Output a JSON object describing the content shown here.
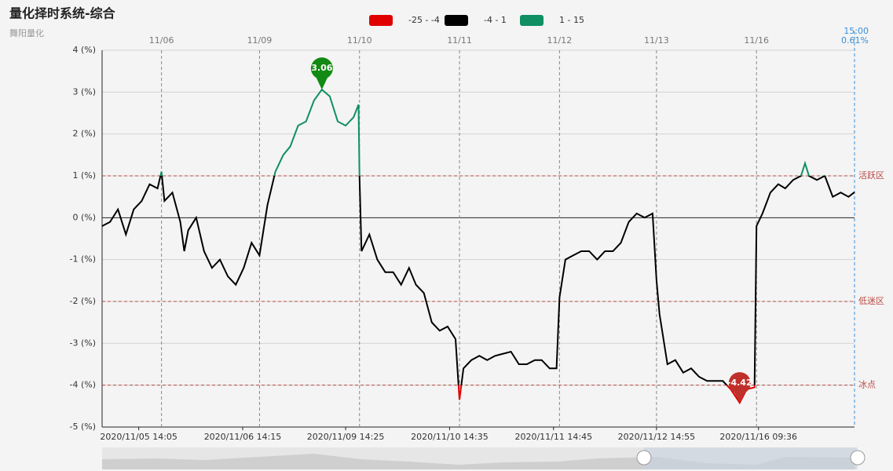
{
  "chart_data": {
    "type": "line",
    "title": "量化择时系统-综合",
    "subtitle": "舞阳量化",
    "legend": [
      {
        "name": "-25 - -4",
        "color": "#e00000",
        "range": [
          -25,
          -4
        ]
      },
      {
        "name": "-4 - 1",
        "color": "#000000",
        "range": [
          -4,
          1
        ]
      },
      {
        "name": "1 - 15",
        "color": "#0f8f62",
        "range": [
          1,
          15
        ]
      }
    ],
    "x": [
      0,
      0.08,
      0.16,
      0.24,
      0.32,
      0.4,
      0.48,
      0.56,
      0.6,
      0.63,
      0.71,
      0.79,
      0.83,
      0.87,
      0.95,
      1.03,
      1.11,
      1.19,
      1.27,
      1.35,
      1.43,
      1.51,
      1.59,
      1.67,
      1.75,
      1.83,
      1.9,
      1.98,
      2.06,
      2.14,
      2.22,
      2.3,
      2.38,
      2.46,
      2.54,
      2.59,
      2.6,
      2.62,
      2.7,
      2.78,
      2.86,
      2.94,
      3.02,
      3.1,
      3.17,
      3.25,
      3.33,
      3.41,
      3.49,
      3.57,
      3.61,
      3.65,
      3.73,
      3.81,
      3.89,
      3.97,
      4.13,
      4.21,
      4.29,
      4.37,
      4.44,
      4.52,
      4.59,
      4.62,
      4.68,
      4.76,
      4.84,
      4.92,
      5.0,
      5.08,
      5.16,
      5.24,
      5.32,
      5.4,
      5.48,
      5.56,
      5.6,
      5.63,
      5.71,
      5.79,
      5.87,
      5.95,
      6.03,
      6.11,
      6.19,
      6.27,
      6.35,
      6.44,
      6.51,
      6.59,
      6.61,
      6.67,
      6.75,
      6.83,
      6.9,
      6.98,
      7.06,
      7.1,
      7.14,
      7.22,
      7.3,
      7.38,
      7.46,
      7.54,
      7.6
    ],
    "values": [
      -0.2,
      -0.1,
      0.2,
      -0.4,
      0.2,
      0.4,
      0.8,
      0.7,
      1.1,
      0.4,
      0.6,
      -0.1,
      -0.8,
      -0.3,
      0.0,
      -0.8,
      -1.2,
      -1.0,
      -1.4,
      -1.6,
      -1.2,
      -0.6,
      -0.9,
      0.3,
      1.1,
      1.5,
      1.7,
      2.2,
      2.3,
      2.8,
      3.06,
      2.9,
      2.3,
      2.2,
      2.4,
      2.7,
      1.0,
      -0.8,
      -0.4,
      -1.0,
      -1.3,
      -1.3,
      -1.6,
      -1.2,
      -1.6,
      -1.8,
      -2.5,
      -2.7,
      -2.6,
      -2.9,
      -4.35,
      -3.6,
      -3.4,
      -3.3,
      -3.4,
      -3.3,
      -3.2,
      -3.5,
      -3.5,
      -3.4,
      -3.4,
      -3.6,
      -3.6,
      -1.9,
      -1.0,
      -0.9,
      -0.8,
      -0.8,
      -1.0,
      -0.8,
      -0.8,
      -0.6,
      -0.1,
      0.1,
      0.0,
      0.1,
      -1.5,
      -2.3,
      -3.5,
      -3.4,
      -3.7,
      -3.6,
      -3.8,
      -3.9,
      -3.9,
      -3.9,
      -4.1,
      -4.42,
      -4.1,
      -4.05,
      -0.2,
      0.1,
      0.6,
      0.8,
      0.7,
      0.9,
      1.0,
      1.3,
      1.0,
      0.9,
      1.0,
      0.5,
      0.6,
      0.5,
      0.61
    ],
    "xlim": [
      0,
      7.6
    ],
    "ylim": [
      -5,
      4
    ],
    "yticks": [
      {
        "value": -5,
        "label": "-5 (%)"
      },
      {
        "value": -4,
        "label": "-4 (%)"
      },
      {
        "value": -3,
        "label": "-3 (%)"
      },
      {
        "value": -2,
        "label": "-2 (%)"
      },
      {
        "value": -1,
        "label": "-1 (%)"
      },
      {
        "value": 0,
        "label": "0 (%)"
      },
      {
        "value": 1,
        "label": "1 (%)"
      },
      {
        "value": 2,
        "label": "2 (%)"
      },
      {
        "value": 3,
        "label": "3 (%)"
      },
      {
        "value": 4,
        "label": "4 (%)"
      }
    ],
    "xticks": [
      {
        "value": 0.37,
        "label": "2020/11/05 14:05"
      },
      {
        "value": 1.42,
        "label": "2020/11/06 14:15"
      },
      {
        "value": 2.46,
        "label": "2020/11/09 14:25"
      },
      {
        "value": 3.51,
        "label": "2020/11/10 14:35"
      },
      {
        "value": 4.56,
        "label": "2020/11/11 14:45"
      },
      {
        "value": 5.6,
        "label": "2020/11/12 14:55"
      },
      {
        "value": 6.63,
        "label": "2020/11/16 09:36"
      }
    ],
    "x2ticks": [
      {
        "value": 0.6,
        "label": "11/06"
      },
      {
        "value": 1.59,
        "label": "11/09"
      },
      {
        "value": 2.6,
        "label": "11/10"
      },
      {
        "value": 3.61,
        "label": "11/11"
      },
      {
        "value": 4.62,
        "label": "11/12"
      },
      {
        "value": 5.6,
        "label": "11/13"
      },
      {
        "value": 6.61,
        "label": "11/16"
      }
    ],
    "current": {
      "time": "15:00",
      "label": "0.61%"
    },
    "bands": [
      {
        "value": 1,
        "label": "活跃区"
      },
      {
        "value": -2,
        "label": "低迷区"
      },
      {
        "value": -4,
        "label": "冰点"
      }
    ],
    "markers": [
      {
        "x": 2.22,
        "value": 3.06,
        "color": "#138a13"
      },
      {
        "x": 6.44,
        "value": -4.42,
        "color": "#c0302a"
      }
    ],
    "grid": true
  }
}
